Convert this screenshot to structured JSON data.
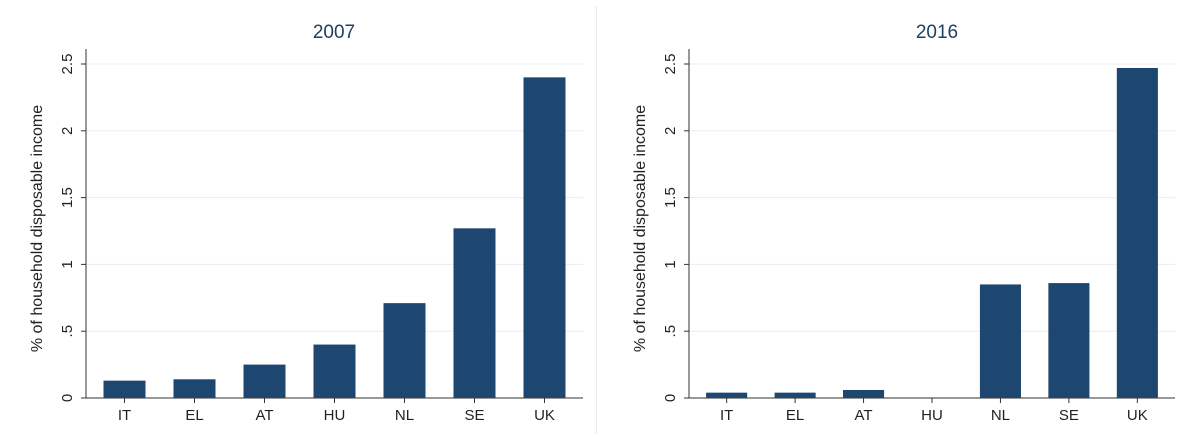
{
  "chart_data": [
    {
      "type": "bar",
      "title": "2007",
      "xlabel": "",
      "ylabel": "% of household disposable income",
      "categories": [
        "IT",
        "EL",
        "AT",
        "HU",
        "NL",
        "SE",
        "UK"
      ],
      "values": [
        0.13,
        0.14,
        0.25,
        0.4,
        0.71,
        1.27,
        2.4
      ],
      "ylim": [
        0,
        2.5
      ],
      "yticks": [
        "0",
        ".5",
        "1",
        "1.5",
        "2",
        "2.5"
      ],
      "ytick_values": [
        0,
        0.5,
        1,
        1.5,
        2,
        2.5
      ],
      "grid": true,
      "bar_color": "#1d4670"
    },
    {
      "type": "bar",
      "title": "2016",
      "xlabel": "",
      "ylabel": "% of household disposable income",
      "categories": [
        "IT",
        "EL",
        "AT",
        "HU",
        "NL",
        "SE",
        "UK"
      ],
      "values": [
        0.04,
        0.04,
        0.06,
        0.0,
        0.85,
        0.86,
        2.47
      ],
      "ylim": [
        0,
        2.5
      ],
      "yticks": [
        "0",
        ".5",
        "1",
        "1.5",
        "2",
        "2.5"
      ],
      "ytick_values": [
        0,
        0.5,
        1,
        1.5,
        2,
        2.5
      ],
      "grid": true,
      "bar_color": "#1d4670"
    }
  ]
}
